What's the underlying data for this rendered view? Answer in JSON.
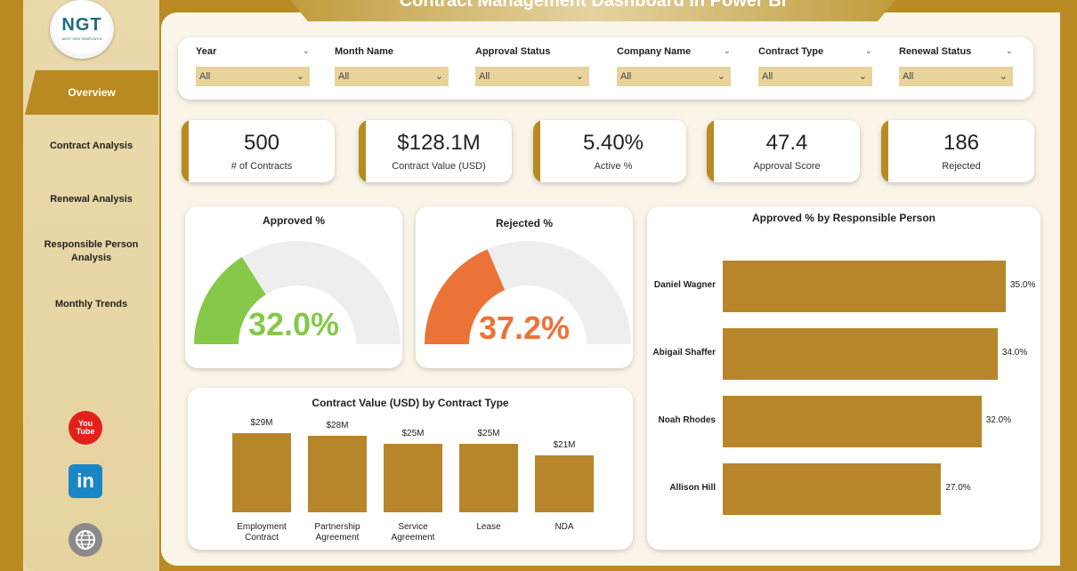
{
  "title": "Contract Management Dashboard in Power BI",
  "logo": {
    "mark": "NGT",
    "sub": "NEXT GEN TEMPLATES"
  },
  "nav": {
    "active": "Overview",
    "items": [
      "Contract Analysis",
      "Renewal Analysis",
      "Responsible Person Analysis",
      "Monthly Trends"
    ]
  },
  "social": {
    "youtube": "You Tube",
    "linkedin": "in"
  },
  "filters": [
    {
      "label": "Year",
      "value": "All"
    },
    {
      "label": "Month Name",
      "value": "All"
    },
    {
      "label": "Approval Status",
      "value": "All"
    },
    {
      "label": "Company Name",
      "value": "All"
    },
    {
      "label": "Contract Type",
      "value": "All"
    },
    {
      "label": "Renewal Status",
      "value": "All"
    }
  ],
  "kpis": [
    {
      "value": "500",
      "label": "# of Contracts"
    },
    {
      "value": "$128.1M",
      "label": "Contract Value (USD)"
    },
    {
      "value": "5.40%",
      "label": "Active %"
    },
    {
      "value": "47.4",
      "label": "Approval Score"
    },
    {
      "value": "186",
      "label": "Rejected"
    }
  ],
  "colors": {
    "accent": "#b98a22",
    "approved": "#86c94a",
    "rejected": "#ec7337",
    "bar": "#b8862a",
    "track": "#efeeee"
  },
  "chart_data": [
    {
      "type": "gauge",
      "title": "Approved %",
      "value": 32.0,
      "value_label": "32.0%",
      "color": "#86c94a"
    },
    {
      "type": "gauge",
      "title": "Rejected %",
      "value": 37.2,
      "value_label": "37.2%",
      "color": "#ec7337"
    },
    {
      "type": "bar",
      "title": "Contract Value (USD) by Contract Type",
      "categories": [
        "Employment Contract",
        "Partnership Agreement",
        "Service Agreement",
        "Lease",
        "NDA"
      ],
      "category_lines": [
        [
          "Employment",
          "Contract"
        ],
        [
          "Partnership",
          "Agreement"
        ],
        [
          "Service",
          "Agreement"
        ],
        [
          "Lease"
        ],
        [
          "NDA"
        ]
      ],
      "values": [
        29,
        28,
        25,
        25,
        21
      ],
      "labels": [
        "$29M",
        "$28M",
        "$25M",
        "$25M",
        "$21M"
      ]
    },
    {
      "type": "bar",
      "orientation": "horizontal",
      "title": "Approved % by Responsible Person",
      "categories": [
        "Daniel Wagner",
        "Abigail Shaffer",
        "Noah Rhodes",
        "Allison Hill"
      ],
      "values": [
        35.0,
        34.0,
        32.0,
        27.0
      ],
      "labels": [
        "35.0%",
        "34.0%",
        "32.0%",
        "27.0%"
      ]
    }
  ]
}
